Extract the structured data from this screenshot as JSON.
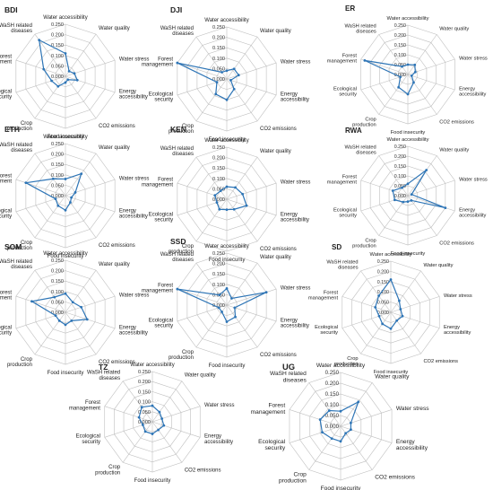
{
  "chart_data": [
    {
      "type": "radar",
      "country": "BDI",
      "axes": [
        "Water accessibility",
        "Water quality",
        "Water stress",
        "Energy accessibility",
        "CO2 emissions",
        "Food insecurity",
        "Crop production",
        "Ecological security",
        "Forest management",
        "WaSH related diseases"
      ],
      "ticks": [
        "0.000",
        "0.050",
        "0.100",
        "0.150",
        "0.200",
        "0.250"
      ],
      "rlim": [
        0,
        0.25
      ],
      "values": [
        0.11,
        0.03,
        0.045,
        0.06,
        0.02,
        0.03,
        0.06,
        0.07,
        0.11,
        0.215
      ]
    },
    {
      "type": "radar",
      "country": "DJI",
      "axes": [
        "Water accessibility",
        "Water quality",
        "Water stress",
        "Energy accessibility",
        "CO2 emissions",
        "Food insecurity",
        "Crop production",
        "Ecological security",
        "Forest management",
        "WaSH related diseases"
      ],
      "ticks": [
        "0.000",
        "0.050",
        "0.100",
        "0.150",
        "0.200",
        "0.250"
      ],
      "rlim": [
        0,
        0.25
      ],
      "values": [
        0.04,
        0.06,
        0.06,
        0.02,
        0.06,
        0.1,
        0.09,
        0.05,
        0.25,
        0.04
      ]
    },
    {
      "type": "radar",
      "country": "ER",
      "axes": [
        "Water accessibility",
        "Water quality",
        "Water stress",
        "Energy accessibility",
        "CO2 emissions",
        "Food insecurity",
        "Crop production",
        "Ecological security",
        "Forest management",
        "WaSH related diseases"
      ],
      "ticks": [
        "0.000",
        "0.050",
        "0.100",
        "0.150",
        "0.200",
        "0.250"
      ],
      "rlim": [
        0,
        0.25
      ],
      "values": [
        0.05,
        0.06,
        0.04,
        0.02,
        0.05,
        0.1,
        0.08,
        0.04,
        0.23,
        0.05
      ]
    },
    {
      "type": "radar",
      "country": "ETH",
      "axes": [
        "Water accessibility",
        "Water quality",
        "Water stress",
        "Energy accessibility",
        "CO2 emissions",
        "Food insecurity",
        "Crop production",
        "Ecological security",
        "Forest management",
        "WaSH related diseases"
      ],
      "ticks": [
        "0.000",
        "0.050",
        "0.100",
        "0.150",
        "0.200",
        "0.250"
      ],
      "rlim": [
        0,
        0.25
      ],
      "values": [
        0.08,
        0.13,
        0.05,
        0.03,
        0.04,
        0.07,
        0.06,
        0.05,
        0.2,
        0.1
      ]
    },
    {
      "type": "radar",
      "country": "KEN",
      "axes": [
        "Water accessibility",
        "Water quality",
        "Water stress",
        "Energy accessibility",
        "CO2 emissions",
        "Food insecurity",
        "Crop production",
        "Ecological security",
        "Forest management",
        "WaSH related diseases"
      ],
      "ticks": [
        "0.000",
        "0.050",
        "0.100",
        "0.150",
        "0.200",
        "0.250"
      ],
      "rlim": [
        0,
        0.25
      ],
      "values": [
        0.06,
        0.07,
        0.08,
        0.1,
        0.06,
        0.05,
        0.06,
        0.05,
        0.06,
        0.05
      ]
    },
    {
      "type": "radar",
      "country": "RWA",
      "axes": [
        "Water accessibility",
        "Water quality",
        "Water stress",
        "Energy accessibility",
        "CO2 emissions",
        "Food insecurity",
        "Crop production",
        "Ecological security",
        "Forest management",
        "WaSH related diseases"
      ],
      "ticks": [
        "0.000",
        "0.050",
        "0.100",
        "0.150",
        "0.200",
        "0.250"
      ],
      "rlim": [
        0,
        0.25
      ],
      "values": [
        0.06,
        0.16,
        0.02,
        0.2,
        0.03,
        0.03,
        0.04,
        0.07,
        0.08,
        0.05
      ]
    },
    {
      "type": "radar",
      "country": "SOM",
      "axes": [
        "Water accessibility",
        "Water quality",
        "Water stress",
        "Energy accessibility",
        "CO2 emissions",
        "Food insecurity",
        "Crop production",
        "Ecological security",
        "Forest management",
        "WaSH related diseases"
      ],
      "ticks": [
        "0.000",
        "0.050",
        "0.100",
        "0.150",
        "0.200",
        "0.250"
      ],
      "rlim": [
        0,
        0.25
      ],
      "values": [
        0.09,
        0.06,
        0.08,
        0.11,
        0.05,
        0.06,
        0.05,
        0.05,
        0.17,
        0.09
      ]
    },
    {
      "type": "radar",
      "country": "SSD",
      "axes": [
        "Water accessibility",
        "Water quality",
        "Water stress",
        "Energy accessibility",
        "CO2 emissions",
        "Food insecurity",
        "Crop production",
        "Ecological security",
        "Forest management",
        "WaSH related diseases"
      ],
      "ticks": [
        "0.000",
        "0.050",
        "0.100",
        "0.150",
        "0.200",
        "0.250"
      ],
      "rlim": [
        0,
        0.25
      ],
      "values": [
        0.08,
        0.04,
        0.2,
        0.04,
        0.07,
        0.08,
        0.04,
        0.04,
        0.25,
        0.06
      ]
    },
    {
      "type": "radar",
      "country": "SD",
      "axes": [
        "Water accessibility",
        "Water quality",
        "Water stress",
        "Energy accessibility",
        "CO2 emissions",
        "Food insecurity",
        "Crop production",
        "Ecological security",
        "Forest management",
        "WaSH related diseases"
      ],
      "ticks": [
        "0.000",
        "0.050",
        "0.100",
        "0.150",
        "0.200",
        "0.250"
      ],
      "rlim": [
        0,
        0.25
      ],
      "values": [
        0.16,
        0.07,
        0.05,
        0.06,
        0.05,
        0.08,
        0.07,
        0.06,
        0.08,
        0.1
      ]
    },
    {
      "type": "radar",
      "country": "TZ",
      "axes": [
        "Water accessibility",
        "Water quality",
        "Water stress",
        "Energy accessibility",
        "CO2 emissions",
        "Food insecurity",
        "Crop production",
        "Ecological security",
        "Forest management",
        "WaSH related diseases"
      ],
      "ticks": [
        "0.000",
        "0.050",
        "0.100",
        "0.150",
        "0.200",
        "0.250"
      ],
      "rlim": [
        0,
        0.25
      ],
      "values": [
        0.08,
        0.06,
        0.05,
        0.06,
        0.05,
        0.06,
        0.06,
        0.05,
        0.07,
        0.09
      ]
    },
    {
      "type": "radar",
      "country": "UG",
      "axes": [
        "Water accessibility",
        "Water quality",
        "Water stress",
        "Energy accessibility",
        "CO2 emissions",
        "Food insecurity",
        "Crop production",
        "Ecological security",
        "Forest management",
        "WaSH related diseases"
      ],
      "ticks": [
        "0.000",
        "0.050",
        "0.100",
        "0.150",
        "0.200",
        "0.250"
      ],
      "rlim": [
        0,
        0.25
      ],
      "values": [
        0.07,
        0.14,
        0.05,
        0.05,
        0.04,
        0.07,
        0.07,
        0.09,
        0.1,
        0.09
      ]
    }
  ]
}
